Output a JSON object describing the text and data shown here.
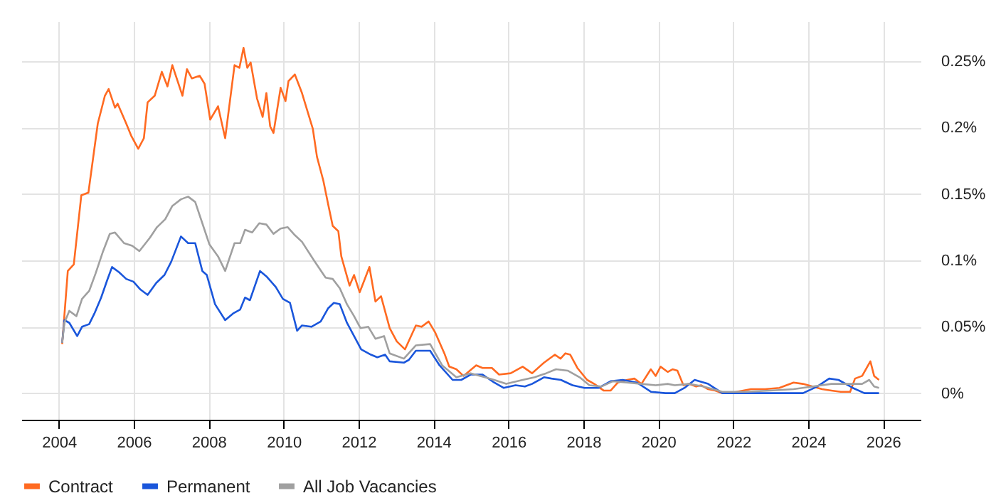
{
  "chart_data": {
    "type": "line",
    "xlim": [
      2003,
      2027
    ],
    "xticks": [
      2004,
      2006,
      2008,
      2010,
      2012,
      2014,
      2016,
      2018,
      2020,
      2022,
      2024,
      2026
    ],
    "ylim": [
      -0.02,
      0.28
    ],
    "yticks": [
      {
        "value": 0,
        "label": "0%"
      },
      {
        "value": 0.05,
        "label": "0.05%"
      },
      {
        "value": 0.1,
        "label": "0.1%"
      },
      {
        "value": 0.15,
        "label": "0.15%"
      },
      {
        "value": 0.2,
        "label": "0.2%"
      },
      {
        "value": 0.25,
        "label": "0.25%"
      }
    ],
    "grid": true,
    "legend": "bottom",
    "line_style": "solid",
    "series": [
      {
        "name": "Contract",
        "color": "#ff6a21",
        "x": [
          2004.09,
          2004.24,
          2004.4,
          2004.6,
          2004.79,
          2005.04,
          2005.23,
          2005.33,
          2005.5,
          2005.57,
          2005.8,
          2005.93,
          2006.12,
          2006.27,
          2006.37,
          2006.56,
          2006.75,
          2006.9,
          2007.03,
          2007.3,
          2007.42,
          2007.55,
          2007.76,
          2007.89,
          2008.04,
          2008.25,
          2008.44,
          2008.69,
          2008.82,
          2008.93,
          2009.03,
          2009.12,
          2009.29,
          2009.44,
          2009.54,
          2009.64,
          2009.73,
          2009.92,
          2010.05,
          2010.13,
          2010.3,
          2010.49,
          2010.78,
          2010.89,
          2011.06,
          2011.19,
          2011.31,
          2011.46,
          2011.54,
          2011.76,
          2011.88,
          2012.03,
          2012.29,
          2012.45,
          2012.6,
          2012.83,
          2013.02,
          2013.24,
          2013.53,
          2013.68,
          2013.87,
          2014.04,
          2014.29,
          2014.42,
          2014.61,
          2014.8,
          2015.14,
          2015.31,
          2015.56,
          2015.75,
          2016.06,
          2016.38,
          2016.63,
          2016.95,
          2017.24,
          2017.39,
          2017.52,
          2017.65,
          2017.84,
          2018.1,
          2018.29,
          2018.54,
          2018.73,
          2018.92,
          2019.17,
          2019.36,
          2019.55,
          2019.8,
          2019.93,
          2020.06,
          2020.25,
          2020.38,
          2020.51,
          2020.67,
          2020.82,
          2021.01,
          2021.14,
          2021.33,
          2021.52,
          2021.71,
          2021.9,
          2022.09,
          2022.47,
          2022.85,
          2023.23,
          2023.61,
          2023.86,
          2024.12,
          2024.37,
          2024.62,
          2024.87,
          2025.12,
          2025.25,
          2025.44,
          2025.66,
          2025.76,
          2025.89
        ],
        "values": [
          0.037,
          0.092,
          0.097,
          0.149,
          0.151,
          0.203,
          0.224,
          0.229,
          0.215,
          0.218,
          0.203,
          0.194,
          0.184,
          0.192,
          0.219,
          0.224,
          0.242,
          0.231,
          0.247,
          0.224,
          0.244,
          0.237,
          0.239,
          0.233,
          0.206,
          0.216,
          0.192,
          0.247,
          0.245,
          0.26,
          0.245,
          0.249,
          0.222,
          0.208,
          0.226,
          0.201,
          0.196,
          0.23,
          0.22,
          0.235,
          0.24,
          0.226,
          0.199,
          0.178,
          0.16,
          0.142,
          0.126,
          0.122,
          0.103,
          0.081,
          0.089,
          0.076,
          0.095,
          0.069,
          0.073,
          0.049,
          0.039,
          0.033,
          0.051,
          0.05,
          0.054,
          0.046,
          0.03,
          0.02,
          0.018,
          0.013,
          0.021,
          0.019,
          0.019,
          0.014,
          0.015,
          0.02,
          0.015,
          0.023,
          0.029,
          0.026,
          0.03,
          0.029,
          0.019,
          0.01,
          0.007,
          0.002,
          0.002,
          0.008,
          0.01,
          0.011,
          0.007,
          0.018,
          0.013,
          0.02,
          0.016,
          0.018,
          0.017,
          0.006,
          0.007,
          0.005,
          0.006,
          0.003,
          0.002,
          0.0,
          0.0,
          0.001,
          0.003,
          0.003,
          0.004,
          0.008,
          0.007,
          0.005,
          0.003,
          0.002,
          0.001,
          0.001,
          0.011,
          0.013,
          0.024,
          0.013,
          0.01
        ]
      },
      {
        "name": "Permanent",
        "color": "#1a56db",
        "x": [
          2004.09,
          2004.15,
          2004.28,
          2004.49,
          2004.62,
          2004.81,
          2004.95,
          2005.13,
          2005.29,
          2005.42,
          2005.61,
          2005.8,
          2005.99,
          2006.18,
          2006.37,
          2006.6,
          2006.82,
          2007.0,
          2007.26,
          2007.45,
          2007.64,
          2007.83,
          2007.95,
          2008.17,
          2008.44,
          2008.65,
          2008.84,
          2008.97,
          2009.1,
          2009.37,
          2009.54,
          2009.79,
          2009.98,
          2010.17,
          2010.36,
          2010.49,
          2010.74,
          2010.99,
          2011.19,
          2011.34,
          2011.5,
          2011.69,
          2011.88,
          2012.07,
          2012.33,
          2012.5,
          2012.71,
          2012.83,
          2013.21,
          2013.34,
          2013.53,
          2013.91,
          2014.16,
          2014.51,
          2014.74,
          2014.99,
          2015.31,
          2015.62,
          2015.87,
          2016.19,
          2016.44,
          2016.63,
          2016.95,
          2017.15,
          2017.4,
          2017.71,
          2018.03,
          2018.41,
          2018.73,
          2019.05,
          2019.43,
          2019.81,
          2020.19,
          2020.44,
          2020.7,
          2020.97,
          2021.33,
          2021.71,
          2022.6,
          2023.86,
          2024.24,
          2024.56,
          2024.81,
          2025.19,
          2025.5,
          2025.89
        ],
        "values": [
          0.038,
          0.055,
          0.053,
          0.043,
          0.05,
          0.052,
          0.06,
          0.072,
          0.085,
          0.095,
          0.091,
          0.086,
          0.084,
          0.078,
          0.074,
          0.083,
          0.089,
          0.099,
          0.118,
          0.113,
          0.113,
          0.092,
          0.089,
          0.067,
          0.055,
          0.06,
          0.063,
          0.072,
          0.07,
          0.092,
          0.088,
          0.08,
          0.071,
          0.068,
          0.047,
          0.051,
          0.05,
          0.054,
          0.064,
          0.068,
          0.067,
          0.053,
          0.043,
          0.033,
          0.029,
          0.027,
          0.029,
          0.024,
          0.023,
          0.025,
          0.032,
          0.032,
          0.021,
          0.01,
          0.01,
          0.014,
          0.014,
          0.008,
          0.004,
          0.006,
          0.005,
          0.007,
          0.012,
          0.011,
          0.01,
          0.006,
          0.004,
          0.004,
          0.009,
          0.01,
          0.008,
          0.001,
          0.0,
          0.0,
          0.004,
          0.01,
          0.007,
          0.0,
          0.0,
          0.0,
          0.005,
          0.011,
          0.01,
          0.004,
          0.0,
          0.0
        ]
      },
      {
        "name": "All Job Vacancies",
        "color": "#a0a0a0",
        "x": [
          2004.09,
          2004.15,
          2004.28,
          2004.47,
          2004.62,
          2004.81,
          2004.98,
          2005.17,
          2005.36,
          2005.5,
          2005.74,
          2005.96,
          2006.15,
          2006.43,
          2006.62,
          2006.84,
          2007.03,
          2007.26,
          2007.45,
          2007.64,
          2007.83,
          2008.02,
          2008.25,
          2008.44,
          2008.69,
          2008.84,
          2008.97,
          2009.16,
          2009.35,
          2009.54,
          2009.73,
          2009.92,
          2010.11,
          2010.3,
          2010.49,
          2010.81,
          2011.12,
          2011.31,
          2011.5,
          2011.69,
          2011.88,
          2012.05,
          2012.26,
          2012.45,
          2012.68,
          2012.83,
          2013.21,
          2013.53,
          2013.91,
          2014.23,
          2014.61,
          2014.99,
          2015.37,
          2015.62,
          2015.94,
          2016.38,
          2016.7,
          2017.01,
          2017.27,
          2017.58,
          2017.9,
          2018.16,
          2018.48,
          2018.79,
          2019.17,
          2019.55,
          2019.93,
          2020.25,
          2020.44,
          2020.82,
          2021.2,
          2021.71,
          2022.34,
          2022.98,
          2023.61,
          2024.12,
          2024.62,
          2025.12,
          2025.44,
          2025.63,
          2025.76,
          2025.89
        ],
        "values": [
          0.038,
          0.053,
          0.062,
          0.058,
          0.071,
          0.077,
          0.09,
          0.106,
          0.12,
          0.121,
          0.113,
          0.111,
          0.107,
          0.117,
          0.125,
          0.131,
          0.141,
          0.146,
          0.148,
          0.144,
          0.128,
          0.112,
          0.103,
          0.092,
          0.113,
          0.113,
          0.123,
          0.121,
          0.128,
          0.127,
          0.12,
          0.124,
          0.125,
          0.119,
          0.114,
          0.1,
          0.087,
          0.086,
          0.079,
          0.067,
          0.058,
          0.049,
          0.05,
          0.041,
          0.043,
          0.03,
          0.026,
          0.036,
          0.037,
          0.021,
          0.012,
          0.015,
          0.012,
          0.01,
          0.007,
          0.01,
          0.012,
          0.015,
          0.018,
          0.017,
          0.012,
          0.006,
          0.005,
          0.009,
          0.008,
          0.007,
          0.006,
          0.007,
          0.006,
          0.007,
          0.005,
          0.001,
          0.001,
          0.002,
          0.003,
          0.005,
          0.007,
          0.007,
          0.007,
          0.01,
          0.005,
          0.004
        ]
      }
    ]
  }
}
